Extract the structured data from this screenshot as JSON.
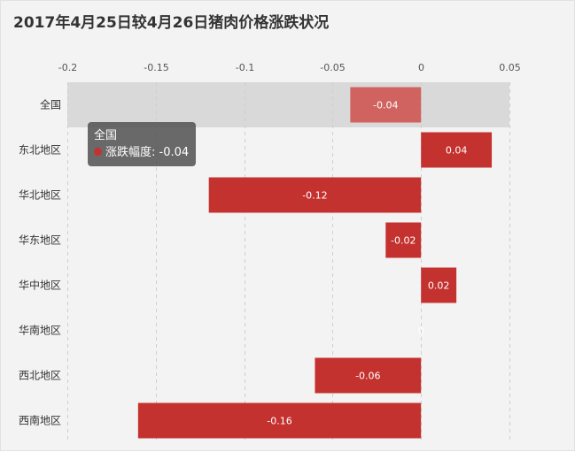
{
  "chart_data": {
    "type": "bar",
    "orientation": "horizontal",
    "title": "2017年4月25日较4月26日猪肉价格涨跌状况",
    "categories": [
      "全国",
      "东北地区",
      "华北地区",
      "华东地区",
      "华中地区",
      "华南地区",
      "西北地区",
      "西南地区"
    ],
    "series": [
      {
        "name": "涨跌幅度",
        "values": [
          -0.04,
          0.04,
          -0.12,
          -0.02,
          0.02,
          0,
          -0.06,
          -0.16
        ],
        "labels": [
          "-0.04",
          "0.04",
          "-0.12",
          "-0.02",
          "0.02",
          "0",
          "-0.06",
          "-0.16"
        ]
      }
    ],
    "xlim": [
      -0.2,
      0.05
    ],
    "xticks": [
      -0.2,
      -0.15,
      -0.1,
      -0.05,
      0,
      0.05
    ],
    "xtick_labels": [
      "-0.2",
      "-0.15",
      "-0.1",
      "-0.05",
      "0",
      "0.05"
    ],
    "axis_position": "top",
    "grid": "vertical-dashed",
    "highlighted_category": "全国",
    "colors": {
      "bar": "#c4322f",
      "bar_highlight": "#d06360",
      "highlight_band": "#d9d9d9",
      "gridline": "#cfcfcf",
      "tooltip_dot": "#c4322f"
    }
  },
  "tooltip": {
    "title": "全国",
    "series_label": "涨跌幅度",
    "separator": ": ",
    "value": "-0.04"
  }
}
